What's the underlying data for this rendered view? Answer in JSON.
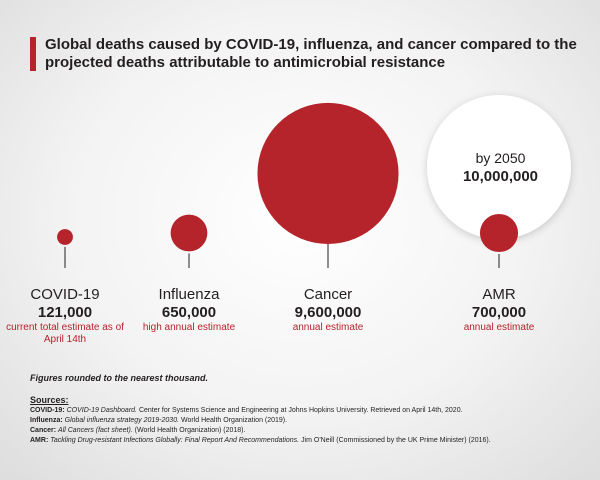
{
  "title": "Global deaths caused by COVID-19, influenza, and cancer compared to the projected deaths attributable to antimicrobial resistance",
  "colors": {
    "accent": "#b5232b",
    "text": "#231f20",
    "amr_2050_fill": "#ffffff"
  },
  "chart_data": {
    "type": "bubble",
    "categories": [
      "COVID-19",
      "Influenza",
      "Cancer",
      "AMR"
    ],
    "values": [
      121000,
      650000,
      9600000,
      700000
    ],
    "value_labels": [
      "121,000",
      "650,000",
      "9,600,000",
      "700,000"
    ],
    "notes": [
      "current total estimate as of April 14th",
      "high annual estimate",
      "annual estimate",
      "annual estimate"
    ],
    "projection": {
      "category": "AMR",
      "label": "by 2050",
      "value": 10000000,
      "value_label": "10,000,000"
    }
  },
  "footnote": "Figures rounded to the nearest thousand.",
  "sources_heading": "Sources:",
  "sources": [
    {
      "label": "COVID-19:",
      "title": "COVID-19 Dashboard.",
      "rest": " Center for Systems Science and Engineering at Johns Hopkins University. Retrieved on April 14th, 2020."
    },
    {
      "label": "Influenza:",
      "title": "Global influenza strategy 2019-2030.",
      "rest": " World Health Organization (2019)."
    },
    {
      "label": "Cancer:",
      "title": "All Cancers (fact sheet).",
      "rest": " (World Health Organization) (2018)."
    },
    {
      "label": "AMR:",
      "title": "Tackling Drug-resistant Infections Globally: Final Report And Recommendations.",
      "rest": " Jim O'Neill (Commissioned by the UK Prime Minister) (2016)."
    }
  ]
}
